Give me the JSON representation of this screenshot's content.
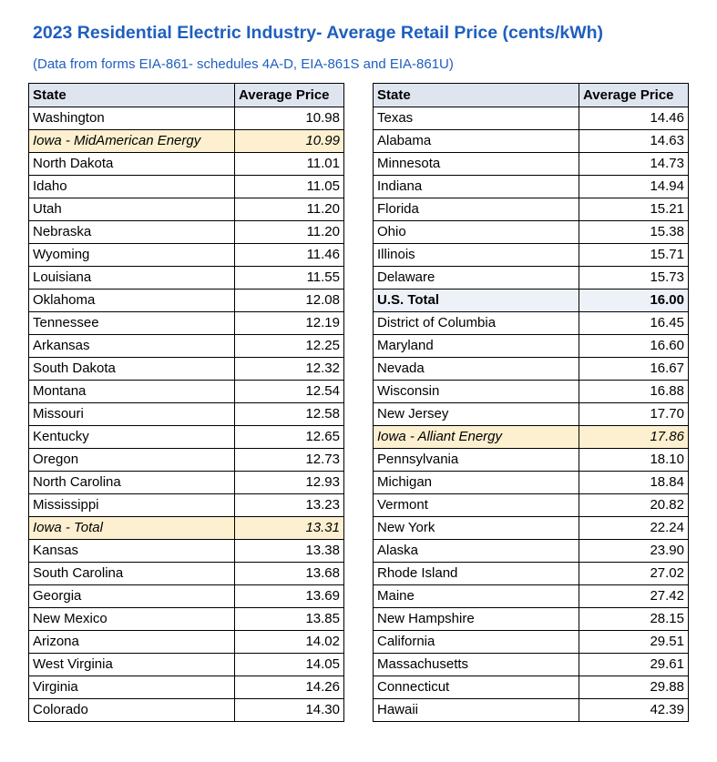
{
  "title": "2023 Residential Electric Industry- Average Retail Price (cents/kWh)",
  "subtitle": "(Data from forms EIA-861- schedules 4A-D, EIA-861S and EIA-861U)",
  "headers": {
    "state": "State",
    "price": "Average Price"
  },
  "left_rows": [
    {
      "state": "Washington",
      "price": "10.98",
      "style": "normal"
    },
    {
      "state": "Iowa - MidAmerican Energy",
      "price": "10.99",
      "style": "highlight"
    },
    {
      "state": "North Dakota",
      "price": "11.01",
      "style": "normal"
    },
    {
      "state": "Idaho",
      "price": "11.05",
      "style": "normal"
    },
    {
      "state": "Utah",
      "price": "11.20",
      "style": "normal"
    },
    {
      "state": "Nebraska",
      "price": "11.20",
      "style": "normal"
    },
    {
      "state": "Wyoming",
      "price": "11.46",
      "style": "normal"
    },
    {
      "state": "Louisiana",
      "price": "11.55",
      "style": "normal"
    },
    {
      "state": "Oklahoma",
      "price": "12.08",
      "style": "normal"
    },
    {
      "state": "Tennessee",
      "price": "12.19",
      "style": "normal"
    },
    {
      "state": "Arkansas",
      "price": "12.25",
      "style": "normal"
    },
    {
      "state": "South Dakota",
      "price": "12.32",
      "style": "normal"
    },
    {
      "state": "Montana",
      "price": "12.54",
      "style": "normal"
    },
    {
      "state": "Missouri",
      "price": "12.58",
      "style": "normal"
    },
    {
      "state": "Kentucky",
      "price": "12.65",
      "style": "normal"
    },
    {
      "state": "Oregon",
      "price": "12.73",
      "style": "normal"
    },
    {
      "state": "North Carolina",
      "price": "12.93",
      "style": "normal"
    },
    {
      "state": "Mississippi",
      "price": "13.23",
      "style": "normal"
    },
    {
      "state": "Iowa - Total",
      "price": "13.31",
      "style": "highlight"
    },
    {
      "state": "Kansas",
      "price": "13.38",
      "style": "normal"
    },
    {
      "state": "South Carolina",
      "price": "13.68",
      "style": "normal"
    },
    {
      "state": "Georgia",
      "price": "13.69",
      "style": "normal"
    },
    {
      "state": "New Mexico",
      "price": "13.85",
      "style": "normal"
    },
    {
      "state": "Arizona",
      "price": "14.02",
      "style": "normal"
    },
    {
      "state": "West Virginia",
      "price": "14.05",
      "style": "normal"
    },
    {
      "state": "Virginia",
      "price": "14.26",
      "style": "normal"
    },
    {
      "state": "Colorado",
      "price": "14.30",
      "style": "normal"
    }
  ],
  "right_rows": [
    {
      "state": "Texas",
      "price": "14.46",
      "style": "normal"
    },
    {
      "state": "Alabama",
      "price": "14.63",
      "style": "normal"
    },
    {
      "state": "Minnesota",
      "price": "14.73",
      "style": "normal"
    },
    {
      "state": "Indiana",
      "price": "14.94",
      "style": "normal"
    },
    {
      "state": "Florida",
      "price": "15.21",
      "style": "normal"
    },
    {
      "state": "Ohio",
      "price": "15.38",
      "style": "normal"
    },
    {
      "state": "Illinois",
      "price": "15.71",
      "style": "normal"
    },
    {
      "state": "Delaware",
      "price": "15.73",
      "style": "normal"
    },
    {
      "state": "U.S. Total",
      "price": "16.00",
      "style": "bold"
    },
    {
      "state": "District of Columbia",
      "price": "16.45",
      "style": "normal"
    },
    {
      "state": "Maryland",
      "price": "16.60",
      "style": "normal"
    },
    {
      "state": "Nevada",
      "price": "16.67",
      "style": "normal"
    },
    {
      "state": "Wisconsin",
      "price": "16.88",
      "style": "normal"
    },
    {
      "state": "New Jersey",
      "price": "17.70",
      "style": "normal"
    },
    {
      "state": "Iowa - Alliant Energy",
      "price": "17.86",
      "style": "highlight"
    },
    {
      "state": "Pennsylvania",
      "price": "18.10",
      "style": "normal"
    },
    {
      "state": "Michigan",
      "price": "18.84",
      "style": "normal"
    },
    {
      "state": "Vermont",
      "price": "20.82",
      "style": "normal"
    },
    {
      "state": "New York",
      "price": "22.24",
      "style": "normal"
    },
    {
      "state": "Alaska",
      "price": "23.90",
      "style": "normal"
    },
    {
      "state": "Rhode Island",
      "price": "27.02",
      "style": "normal"
    },
    {
      "state": "Maine",
      "price": "27.42",
      "style": "normal"
    },
    {
      "state": "New Hampshire",
      "price": "28.15",
      "style": "normal"
    },
    {
      "state": "California",
      "price": "29.51",
      "style": "normal"
    },
    {
      "state": "Massachusetts",
      "price": "29.61",
      "style": "normal"
    },
    {
      "state": "Connecticut",
      "price": "29.88",
      "style": "normal"
    },
    {
      "state": "Hawaii",
      "price": "42.39",
      "style": "normal"
    }
  ]
}
